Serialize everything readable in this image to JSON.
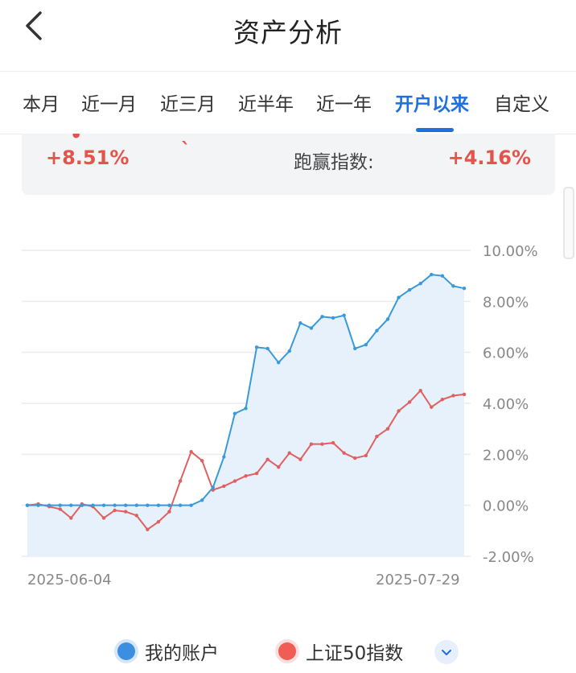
{
  "header": {
    "title": "资产分析",
    "back_icon": "chevron-left-icon"
  },
  "tabs": [
    {
      "label": "本月",
      "active": false
    },
    {
      "label": "近一月",
      "active": false
    },
    {
      "label": "近三月",
      "active": false
    },
    {
      "label": "近半年",
      "active": false
    },
    {
      "label": "近一年",
      "active": false
    },
    {
      "label": "开户以来",
      "active": true
    },
    {
      "label": "自定义",
      "active": false
    }
  ],
  "summary": {
    "account_return": "+8.51%",
    "beat_index_label": "跑赢指数:",
    "beat_index_value": "+4.16%"
  },
  "colors": {
    "accent": "#1f6fe0",
    "gain": "#e5544b",
    "account_line": "#3a9ad9",
    "index_line": "#e06060",
    "area_fill": "#e6f1fc"
  },
  "chart_data": {
    "type": "line",
    "x_labels": [
      "2025-06-04",
      "2025-07-29"
    ],
    "ylim": [
      -2,
      10
    ],
    "yticks": [
      "10.00%",
      "8.00%",
      "6.00%",
      "4.00%",
      "2.00%",
      "0.00%",
      "-2.00%"
    ],
    "grid": true,
    "series": [
      {
        "name": "我的账户",
        "values": [
          0,
          0,
          0,
          0,
          0,
          0,
          0,
          0,
          0,
          0,
          0,
          0,
          0,
          0,
          0,
          0,
          0.2,
          0.7,
          1.9,
          3.6,
          3.8,
          6.2,
          6.15,
          5.6,
          6.05,
          7.15,
          6.95,
          7.4,
          7.35,
          7.45,
          6.15,
          6.3,
          6.85,
          7.3,
          8.15,
          8.45,
          8.7,
          9.05,
          9.0,
          8.6,
          8.51
        ]
      },
      {
        "name": "上证50指数",
        "values": [
          0,
          0.05,
          -0.05,
          -0.15,
          -0.5,
          0.05,
          -0.05,
          -0.5,
          -0.2,
          -0.25,
          -0.4,
          -0.95,
          -0.65,
          -0.25,
          0.95,
          2.1,
          1.75,
          0.6,
          0.75,
          0.95,
          1.15,
          1.25,
          1.8,
          1.5,
          2.05,
          1.8,
          2.4,
          2.4,
          2.45,
          2.05,
          1.85,
          1.95,
          2.7,
          3.0,
          3.7,
          4.05,
          4.5,
          3.85,
          4.15,
          4.3,
          4.35
        ]
      }
    ]
  },
  "legend": {
    "items": [
      "我的账户",
      "上证50指数"
    ],
    "expand_icon": "chevron-down-icon"
  }
}
